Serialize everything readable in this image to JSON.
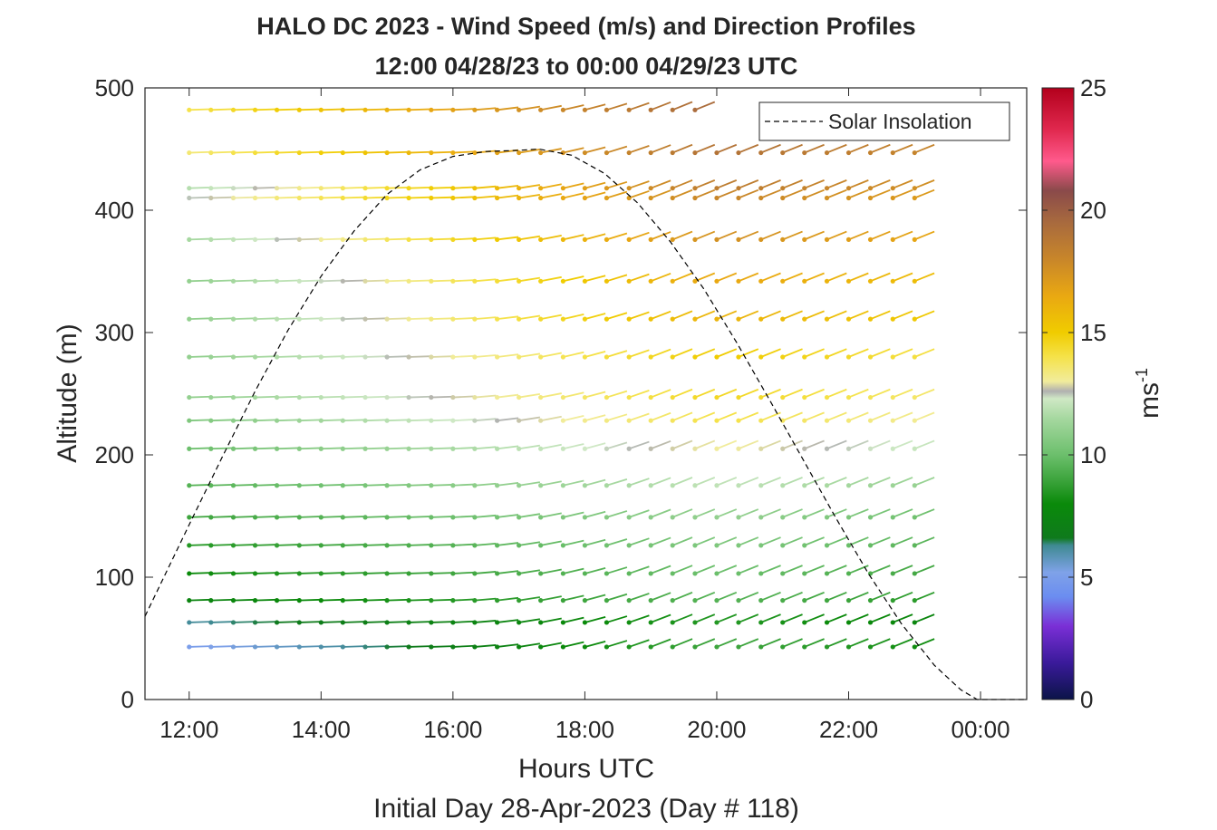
{
  "chart_data": {
    "type": "wind-barb-profile",
    "title": "HALO DC 2023 - Wind Speed (m/s) and Direction Profiles",
    "subtitle": "12:00 04/28/23 to 00:00 04/29/23  UTC",
    "xlabel": "Hours UTC",
    "xlabel2": "Initial Day 28-Apr-2023 (Day # 118)",
    "ylabel": "Altitude (m)",
    "xlim_hours": [
      11.33,
      24.7
    ],
    "ylim": [
      0,
      500
    ],
    "x_ticks": [
      {
        "hour": 12,
        "label": "12:00"
      },
      {
        "hour": 14,
        "label": "14:00"
      },
      {
        "hour": 16,
        "label": "16:00"
      },
      {
        "hour": 18,
        "label": "18:00"
      },
      {
        "hour": 20,
        "label": "20:00"
      },
      {
        "hour": 22,
        "label": "22:00"
      },
      {
        "hour": 24,
        "label": "00:00"
      }
    ],
    "y_ticks": [
      0,
      100,
      200,
      300,
      400,
      500
    ],
    "colorbar": {
      "label": "ms",
      "label_superscript": "-1",
      "range": [
        0,
        25
      ],
      "ticks": [
        0,
        5,
        10,
        15,
        20,
        25
      ],
      "stops": [
        {
          "v": 0,
          "c": "#0b1448"
        },
        {
          "v": 1.5,
          "c": "#3a1a9a"
        },
        {
          "v": 3,
          "c": "#7a2fd6"
        },
        {
          "v": 4.2,
          "c": "#6b8df0"
        },
        {
          "v": 5.2,
          "c": "#7fa2e8"
        },
        {
          "v": 6.3,
          "c": "#3f8a92"
        },
        {
          "v": 6.6,
          "c": "#0f7a1c"
        },
        {
          "v": 8,
          "c": "#0a8a0a"
        },
        {
          "v": 9,
          "c": "#3ea53e"
        },
        {
          "v": 10,
          "c": "#6cbf6c"
        },
        {
          "v": 11.5,
          "c": "#a6d8a0"
        },
        {
          "v": 12.3,
          "c": "#cfe8c5"
        },
        {
          "v": 12.6,
          "c": "#b0b0b0"
        },
        {
          "v": 13,
          "c": "#f1ec9c"
        },
        {
          "v": 14,
          "c": "#f5e24a"
        },
        {
          "v": 15,
          "c": "#f0cc00"
        },
        {
          "v": 16.5,
          "c": "#e9a812"
        },
        {
          "v": 18,
          "c": "#c8862a"
        },
        {
          "v": 19.5,
          "c": "#a86a3e"
        },
        {
          "v": 20.8,
          "c": "#8a4a4a"
        },
        {
          "v": 22,
          "c": "#ff5a8c"
        },
        {
          "v": 23.3,
          "c": "#e0284e"
        },
        {
          "v": 25,
          "c": "#b3001c"
        }
      ]
    },
    "barbs": {
      "times_hours": [
        12.0,
        12.33,
        12.67,
        13.0,
        13.33,
        13.67,
        14.0,
        14.33,
        14.67,
        15.0,
        15.33,
        15.67,
        16.0,
        16.33,
        16.67,
        17.0,
        17.33,
        17.67,
        18.0,
        18.33,
        18.67,
        19.0,
        19.33,
        19.67,
        20.0,
        20.33,
        20.67,
        21.0,
        21.33,
        21.67,
        22.0,
        22.33,
        22.67,
        23.0
      ],
      "altitudes_m": [
        43,
        63,
        81,
        103,
        126,
        149,
        175,
        205,
        228,
        247,
        280,
        311,
        342,
        376,
        410,
        418,
        447,
        482
      ],
      "max_hour_at_altitude": [
        23.0,
        23.0,
        23.0,
        23.0,
        23.0,
        23.0,
        23.0,
        23.0,
        23.0,
        23.0,
        23.0,
        23.0,
        23.0,
        23.0,
        23.0,
        23.0,
        23.0,
        19.67
      ],
      "max_hour_at_altitude_note": "per-altitude last barb hour",
      "speed_profile_ms": [
        {
          "alt": 43,
          "start": 5.0,
          "end": 9.0
        },
        {
          "alt": 63,
          "start": 6.2,
          "end": 8.5
        },
        {
          "alt": 81,
          "start": 7.5,
          "end": 9.5
        },
        {
          "alt": 103,
          "start": 8.0,
          "end": 10.0
        },
        {
          "alt": 126,
          "start": 8.5,
          "end": 10.5
        },
        {
          "alt": 149,
          "start": 9.0,
          "end": 11.0
        },
        {
          "alt": 175,
          "start": 9.5,
          "end": 12.0
        },
        {
          "alt": 205,
          "start": 10.0,
          "end": 13.0
        },
        {
          "alt": 228,
          "start": 10.5,
          "end": 14.0
        },
        {
          "alt": 247,
          "start": 11.0,
          "end": 14.5
        },
        {
          "alt": 280,
          "start": 11.0,
          "end": 15.0
        },
        {
          "alt": 311,
          "start": 11.0,
          "end": 16.0
        },
        {
          "alt": 342,
          "start": 11.0,
          "end": 16.5
        },
        {
          "alt": 376,
          "start": 11.5,
          "end": 17.5
        },
        {
          "alt": 410,
          "start": 12.5,
          "end": 18.0
        },
        {
          "alt": 418,
          "start": 11.8,
          "end": 18.5
        },
        {
          "alt": 447,
          "start": 13.5,
          "end": 19.0
        },
        {
          "alt": 482,
          "start": 14.0,
          "end": 19.5
        }
      ]
    },
    "solar_insolation": {
      "name": "Solar Insolation",
      "style": "dashed",
      "color": "#000000",
      "peak_hour": 17.25,
      "peak_alt_equiv_m": 450,
      "zero_hour": 24.35,
      "curve_points": [
        {
          "h": 11.33,
          "a": 68
        },
        {
          "h": 12.0,
          "a": 143
        },
        {
          "h": 12.5,
          "a": 198
        },
        {
          "h": 13.0,
          "a": 252
        },
        {
          "h": 13.5,
          "a": 302
        },
        {
          "h": 14.0,
          "a": 346
        },
        {
          "h": 14.5,
          "a": 383
        },
        {
          "h": 15.0,
          "a": 413
        },
        {
          "h": 15.5,
          "a": 433
        },
        {
          "h": 16.0,
          "a": 444
        },
        {
          "h": 16.5,
          "a": 448
        },
        {
          "h": 17.0,
          "a": 449
        },
        {
          "h": 17.3,
          "a": 450
        },
        {
          "h": 17.8,
          "a": 445
        },
        {
          "h": 18.3,
          "a": 430
        },
        {
          "h": 18.8,
          "a": 406
        },
        {
          "h": 19.3,
          "a": 374
        },
        {
          "h": 19.8,
          "a": 336
        },
        {
          "h": 20.3,
          "a": 292
        },
        {
          "h": 20.8,
          "a": 245
        },
        {
          "h": 21.3,
          "a": 197
        },
        {
          "h": 21.8,
          "a": 149
        },
        {
          "h": 22.3,
          "a": 103
        },
        {
          "h": 22.8,
          "a": 62
        },
        {
          "h": 23.3,
          "a": 28
        },
        {
          "h": 23.7,
          "a": 8
        },
        {
          "h": 23.95,
          "a": 0
        },
        {
          "h": 24.7,
          "a": 0
        }
      ]
    },
    "legend": {
      "entries": [
        "Solar Insolation"
      ],
      "placement": "top-right"
    },
    "grid": false
  }
}
